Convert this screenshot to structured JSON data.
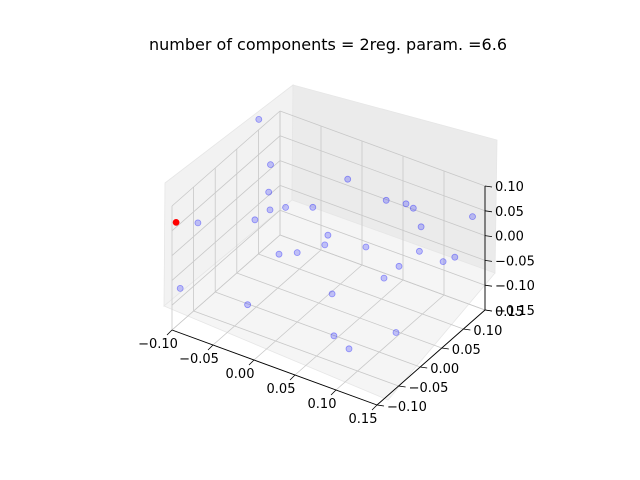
{
  "chart_data": {
    "type": "scatter",
    "projection": "3d",
    "title": "number of components = 2reg. param. =6.6",
    "xlabel": "",
    "ylabel": "",
    "zlabel": "",
    "x_ticks": [
      "−0.10",
      "−0.05",
      "0.00",
      "0.05",
      "0.10",
      "0.15"
    ],
    "y_ticks": [
      "−0.10",
      "−0.05",
      "0.00",
      "0.05",
      "0.10",
      "0.15"
    ],
    "z_ticks": [
      "−0.15",
      "−0.10",
      "−0.05",
      "0.00",
      "0.05",
      "0.10"
    ],
    "grid": true,
    "series": [
      {
        "marker": "circle",
        "color": "#0000ff",
        "alpha": 0.22,
        "points": [
          [
            0.04,
            0.13,
            0.02
          ],
          [
            -0.02,
            -0.06,
            0.09
          ],
          [
            0.11,
            0.02,
            -0.12
          ],
          [
            -0.08,
            0.09,
            0.05
          ],
          [
            0.14,
            -0.03,
            0.07
          ],
          [
            0.0,
            0.0,
            -0.01
          ],
          [
            0.07,
            0.15,
            -0.08
          ],
          [
            -0.11,
            0.12,
            0.1
          ],
          [
            0.09,
            -0.09,
            0.03
          ],
          [
            0.12,
            0.11,
            -0.04
          ],
          [
            -0.05,
            -0.02,
            -0.13
          ],
          [
            0.03,
            0.06,
            0.11
          ],
          [
            0.15,
            0.08,
            0.01
          ],
          [
            -0.09,
            -0.1,
            -0.06
          ],
          [
            0.06,
            -0.05,
            0.08
          ],
          [
            0.01,
            0.14,
            -0.1
          ],
          [
            -0.03,
            0.03,
            0.04
          ],
          [
            0.1,
            -0.07,
            -0.09
          ],
          [
            0.13,
            0.04,
            0.09
          ],
          [
            -0.07,
            0.07,
            -0.02
          ],
          [
            0.08,
            0.1,
            0.06
          ],
          [
            -0.1,
            -0.04,
            0.02
          ],
          [
            0.05,
            -0.01,
            -0.14
          ],
          [
            -0.01,
            0.09,
            -0.05
          ],
          [
            0.14,
            0.14,
            0.04
          ],
          [
            -0.06,
            0.15,
            -0.07
          ],
          [
            0.02,
            -0.08,
            0.06
          ],
          [
            0.11,
            0.06,
            0.1
          ],
          [
            -0.04,
            0.01,
            0.08
          ],
          [
            0.09,
            0.03,
            -0.03
          ]
        ]
      },
      {
        "marker": "circle",
        "color": "#ff0000",
        "alpha": 1.0,
        "points": [
          [
            -0.095,
            -0.1,
            0.07
          ]
        ]
      }
    ]
  }
}
